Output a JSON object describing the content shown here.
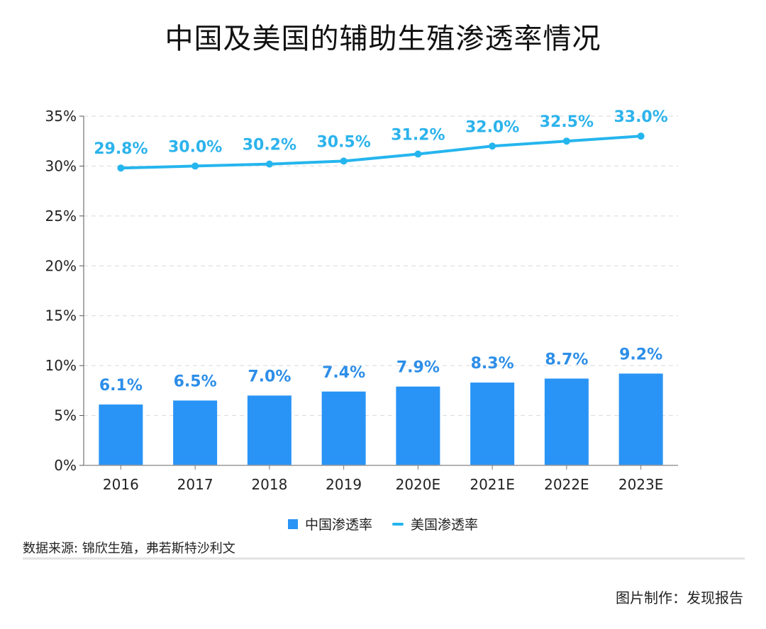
{
  "title": "中国及美国的辅助生殖渗透率情况",
  "chart_data": {
    "type": "bar",
    "title": "中国及美国的辅助生殖渗透率情况",
    "categories": [
      "2016",
      "2017",
      "2018",
      "2019",
      "2020E",
      "2021E",
      "2022E",
      "2023E"
    ],
    "series": [
      {
        "name": "中国渗透率",
        "kind": "bar",
        "color": "#2994f5",
        "values": [
          6.1,
          6.5,
          7.0,
          7.4,
          7.9,
          8.3,
          8.7,
          9.2
        ],
        "labels": [
          "6.1%",
          "6.5%",
          "7.0%",
          "7.4%",
          "7.9%",
          "8.3%",
          "8.7%",
          "9.2%"
        ]
      },
      {
        "name": "美国渗透率",
        "kind": "line",
        "color": "#25b5ee",
        "values": [
          29.8,
          30.0,
          30.2,
          30.5,
          31.2,
          32.0,
          32.5,
          33.0
        ],
        "labels": [
          "29.8%",
          "30.0%",
          "30.2%",
          "30.5%",
          "31.2%",
          "32.0%",
          "32.5%",
          "33.0%"
        ]
      }
    ],
    "yaxis": {
      "min": 0,
      "max": 35,
      "ticks": [
        0,
        5,
        10,
        15,
        20,
        25,
        30,
        35
      ],
      "tick_labels": [
        "0%",
        "5%",
        "10%",
        "15%",
        "20%",
        "25%",
        "30%",
        "35%"
      ]
    },
    "xlabel": "",
    "ylabel": "",
    "grid": true,
    "grid_style": "dashed",
    "legend_position": "bottom-center",
    "bar_label_color": "#2d8ee8",
    "line_label_color": "#2cb3ec"
  },
  "legend": {
    "items": [
      {
        "label": "中国渗透率",
        "color": "#2994f5",
        "shape": "square"
      },
      {
        "label": "美国渗透率",
        "color": "#25b5ee",
        "shape": "line"
      }
    ]
  },
  "source": "数据来源: 锦欣生殖，弗若斯特沙利文",
  "credit": "图片制作：发现报告"
}
